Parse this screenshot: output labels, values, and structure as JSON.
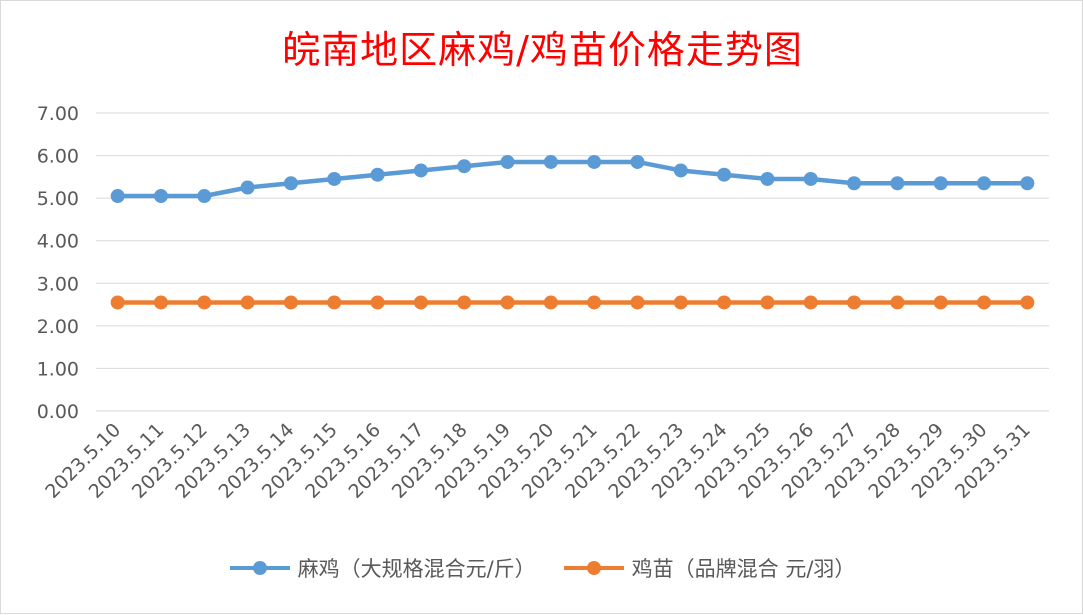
{
  "chart_data": {
    "type": "line",
    "title": "皖南地区麻鸡/鸡苗价格走势图",
    "xlabel": "",
    "ylabel": "",
    "categories": [
      "2023.5.10",
      "2023.5.11",
      "2023.5.12",
      "2023.5.13",
      "2023.5.14",
      "2023.5.15",
      "2023.5.16",
      "2023.5.17",
      "2023.5.18",
      "2023.5.19",
      "2023.5.20",
      "2023.5.21",
      "2023.5.22",
      "2023.5.23",
      "2023.5.24",
      "2023.5.25",
      "2023.5.26",
      "2023.5.27",
      "2023.5.28",
      "2023.5.29",
      "2023.5.30",
      "2023.5.31"
    ],
    "y_ticks": [
      "0.00",
      "1.00",
      "2.00",
      "3.00",
      "4.00",
      "5.00",
      "6.00",
      "7.00"
    ],
    "ylim": [
      0,
      7
    ],
    "grid": true,
    "legend_position": "bottom",
    "series": [
      {
        "name": "麻鸡（大规格混合元/斤）",
        "color": "#5b9bd5",
        "values": [
          5.05,
          5.05,
          5.05,
          5.25,
          5.35,
          5.45,
          5.55,
          5.65,
          5.75,
          5.85,
          5.85,
          5.85,
          5.85,
          5.65,
          5.55,
          5.45,
          5.45,
          5.35,
          5.35,
          5.35,
          5.35,
          5.35
        ]
      },
      {
        "name": "鸡苗（品牌混合 元/羽）",
        "color": "#ed7d31",
        "values": [
          2.55,
          2.55,
          2.55,
          2.55,
          2.55,
          2.55,
          2.55,
          2.55,
          2.55,
          2.55,
          2.55,
          2.55,
          2.55,
          2.55,
          2.55,
          2.55,
          2.55,
          2.55,
          2.55,
          2.55,
          2.55,
          2.55
        ]
      }
    ]
  }
}
